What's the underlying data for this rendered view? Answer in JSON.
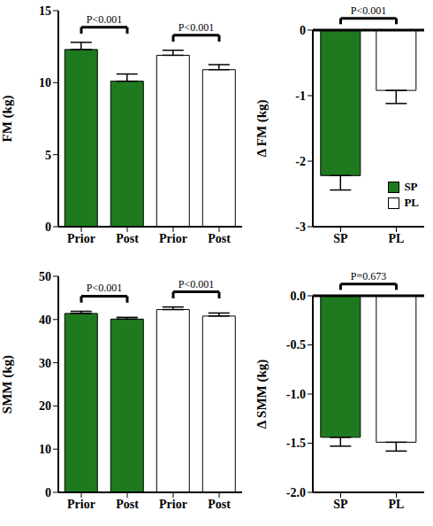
{
  "chart_data": [
    {
      "type": "bar",
      "ylabel": "FM (kg)",
      "categories": [
        "Prior",
        "Post",
        "Prior",
        "Post"
      ],
      "values": [
        12.3,
        10.1,
        11.9,
        10.9
      ],
      "errors": [
        0.5,
        0.5,
        0.35,
        0.35
      ],
      "colors": [
        "#1f7a1f",
        "#1f7a1f",
        "#ffffff",
        "#ffffff"
      ],
      "ylim": [
        0,
        15
      ],
      "yticks": [
        0,
        5,
        10,
        15
      ],
      "annotations": [
        "P<0.001",
        "P<0.001"
      ]
    },
    {
      "type": "bar",
      "ylabel": "Δ FM (kg)",
      "categories": [
        "SP",
        "PL"
      ],
      "values": [
        -2.22,
        -0.92
      ],
      "errors": [
        0.22,
        0.2
      ],
      "colors": [
        "#1f7a1f",
        "#ffffff"
      ],
      "ylim": [
        -3,
        0
      ],
      "yticks": [
        -3,
        -2,
        -1,
        0
      ],
      "annotations": [
        "P<0.001"
      ],
      "legend": "lower right"
    },
    {
      "type": "bar",
      "ylabel": "SMM (kg)",
      "categories": [
        "Prior",
        "Post",
        "Prior",
        "Post"
      ],
      "values": [
        41.4,
        40.1,
        42.3,
        40.8
      ],
      "errors": [
        0.5,
        0.4,
        0.6,
        0.7
      ],
      "colors": [
        "#1f7a1f",
        "#1f7a1f",
        "#ffffff",
        "#ffffff"
      ],
      "ylim": [
        0,
        50
      ],
      "yticks": [
        0,
        10,
        20,
        30,
        40,
        50
      ],
      "annotations": [
        "P<0.001",
        "P<0.001"
      ]
    },
    {
      "type": "bar",
      "ylabel": "Δ SMM (kg)",
      "categories": [
        "SP",
        "PL"
      ],
      "values": [
        -1.44,
        -1.49
      ],
      "errors": [
        0.09,
        0.09
      ],
      "colors": [
        "#1f7a1f",
        "#ffffff"
      ],
      "ylim": [
        -2,
        0
      ],
      "yticks": [
        {
          "value": -2,
          "label": "-2.0"
        },
        -1.5,
        {
          "value": -1,
          "label": "-1.0"
        },
        -0.5,
        {
          "value": 0,
          "label": "0.0"
        }
      ],
      "annotations": [
        "P=0.673"
      ]
    }
  ]
}
